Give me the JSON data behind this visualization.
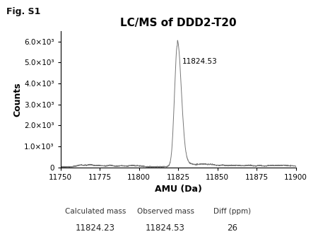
{
  "title": "LC/MS of DDD2-T20",
  "xlabel": "AMU (Da)",
  "ylabel": "Counts",
  "xlim": [
    11750,
    11900
  ],
  "ylim": [
    0,
    6500
  ],
  "yticks": [
    0,
    1000,
    2000,
    3000,
    4000,
    5000,
    6000
  ],
  "ytick_labels": [
    "0",
    "1.0×10³",
    "2.0×10³",
    "3.0×10³",
    "4.0×10³",
    "5.0×10³",
    "6.0×10³"
  ],
  "xticks": [
    11750,
    11775,
    11800,
    11825,
    11850,
    11875,
    11900
  ],
  "peak_x": 11824.53,
  "peak_y": 5800,
  "peak_label": "11824.53",
  "line_color": "#777777",
  "title_fontsize": 11,
  "label_fontsize": 9,
  "tick_fontsize": 7.5,
  "fig_S1_label": "Fig. S1",
  "table_headers": [
    "Calculated mass",
    "Observed mass",
    "Diff (ppm)"
  ],
  "table_values": [
    "11824.23",
    "11824.53",
    "26"
  ],
  "noise_seed": 42,
  "background_color": "#ffffff",
  "noise_baseline": 25,
  "bump_heights": [
    80,
    90,
    60,
    70,
    55,
    50,
    45,
    100,
    90,
    70,
    60,
    50,
    70,
    55,
    65,
    50,
    60,
    45
  ],
  "bump_centers": [
    11763,
    11769,
    11775,
    11782,
    11789,
    11795,
    11800,
    11841,
    11847,
    11853,
    11859,
    11864,
    11870,
    11877,
    11884,
    11889,
    11893,
    11898
  ],
  "bump_widths": [
    2.5,
    2.0,
    2.5,
    2.0,
    2.0,
    2.0,
    2.5,
    3.0,
    2.5,
    2.0,
    2.5,
    2.0,
    2.5,
    2.0,
    2.5,
    2.0,
    2.0,
    2.0
  ]
}
